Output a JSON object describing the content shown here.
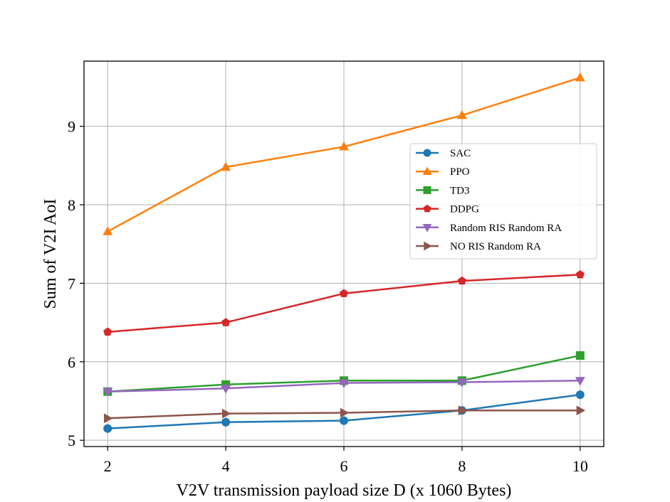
{
  "chart_data": {
    "type": "line",
    "title": "",
    "xlabel": "V2V transmission payload size D (x 1060 Bytes)",
    "ylabel": "Sum of V2I AoI",
    "x": [
      2,
      4,
      6,
      8,
      10
    ],
    "xlim": [
      1.6,
      10.4
    ],
    "ylim": [
      4.92,
      9.83
    ],
    "xticks": [
      2,
      4,
      6,
      8,
      10
    ],
    "yticks": [
      5,
      6,
      7,
      8,
      9
    ],
    "grid": true,
    "legend_position": "center-right",
    "series": [
      {
        "name": "SAC",
        "color": "#1f77b4",
        "marker": "circle",
        "values": [
          5.15,
          5.23,
          5.25,
          5.38,
          5.58
        ]
      },
      {
        "name": "PPO",
        "color": "#ff7f0e",
        "marker": "triangle-up",
        "values": [
          7.66,
          8.48,
          8.74,
          9.14,
          9.62
        ]
      },
      {
        "name": "TD3",
        "color": "#2ca02c",
        "marker": "square",
        "values": [
          5.62,
          5.71,
          5.76,
          5.76,
          6.08
        ]
      },
      {
        "name": "DDPG",
        "color": "#d62728",
        "marker": "pentagon",
        "values": [
          6.38,
          6.5,
          6.87,
          7.03,
          7.11
        ]
      },
      {
        "name": "Random RIS Random RA",
        "color": "#9467bd",
        "marker": "triangle-down",
        "values": [
          5.62,
          5.66,
          5.73,
          5.74,
          5.76
        ]
      },
      {
        "name": "NO RIS Random RA",
        "color": "#8c564b",
        "marker": "triangle-right",
        "values": [
          5.28,
          5.34,
          5.35,
          5.38,
          5.38
        ]
      }
    ]
  }
}
